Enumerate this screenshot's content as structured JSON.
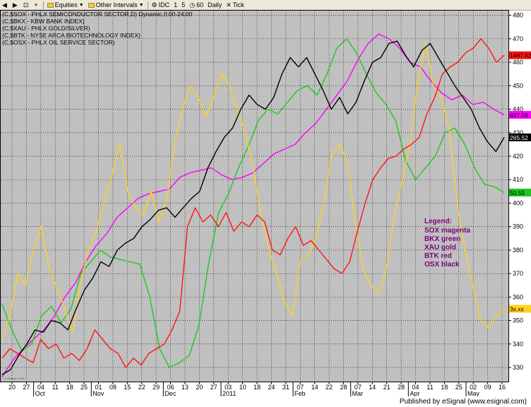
{
  "toolbar": {
    "items": [
      {
        "label": "",
        "icon": "back-icon"
      },
      {
        "label": "",
        "icon": "forward-icon"
      },
      {
        "label": "",
        "icon": "link-icon"
      },
      {
        "label": "",
        "icon": "add-icon"
      },
      {
        "label": "Equities",
        "icon": "folder-icon"
      },
      {
        "label": "Other Intervals",
        "icon": "folder-icon"
      },
      {
        "label": "IDC",
        "icon": "gear-icon"
      },
      {
        "label": "1",
        "icon": ""
      },
      {
        "label": "5",
        "icon": ""
      },
      {
        "label": "60",
        "icon": "circle-icon"
      },
      {
        "label": "Daily",
        "icon": ""
      },
      {
        "label": "Tick",
        "icon": "close-icon"
      }
    ]
  },
  "header_lines": [
    "(C,$SOX - PHLX SEMICONDUCTOR SECTOR,D) Dynamic,0:00-24:00",
    "(C,$BKX - KBW BANK INDEX)",
    "(C,$XAU - PHLX GOLD/SILVER)",
    "(C,$BTK - NYSE ARCA BIOTECHNOLOGY INDEX)",
    "(C,$OSX - PHLX OIL SERVICE SECTOR)"
  ],
  "legend": {
    "title": "Legend:",
    "lines": [
      "SOX magenta",
      "BKX green",
      "XAU gold",
      "BTK red",
      "OSX black"
    ],
    "color": "#7b007b"
  },
  "footer": {
    "text": "Published by eSignal (www.esignal.com)"
  },
  "watermark": "© eSignal, 2010",
  "chart_data": {
    "type": "line",
    "background": "#c0c0c0",
    "grid": true,
    "ylim": [
      324,
      482
    ],
    "yticks": [
      330,
      340,
      350,
      360,
      370,
      380,
      390,
      400,
      410,
      420,
      430,
      440,
      450,
      460,
      470,
      480
    ],
    "x_tick_labels": [
      "20",
      "27",
      "04",
      "11",
      "18",
      "25",
      "01",
      "08",
      "15",
      "22",
      "29",
      "06",
      "13",
      "20",
      "27",
      "03",
      "10",
      "18",
      "24",
      "31",
      "07",
      "14",
      "22",
      "28",
      "07",
      "14",
      "21",
      "28",
      "04",
      "11",
      "18",
      "25",
      "02",
      "09",
      "16"
    ],
    "month_labels": [
      "Oct",
      "Nov",
      "Dec",
      "2011",
      "Feb",
      "Mar",
      "Apr",
      "May"
    ],
    "month_label_after_tick": [
      2,
      6,
      11,
      15,
      20,
      24,
      28,
      32
    ],
    "series": [
      {
        "key": "SOX",
        "color": "#ff00ff",
        "last_label": "437.59",
        "last": 437.59,
        "values": [
          326,
          333,
          338,
          342,
          346,
          352,
          360,
          366,
          375,
          382,
          387,
          394,
          398,
          402,
          404,
          405,
          406,
          411,
          413,
          414,
          415,
          412,
          410,
          411,
          413,
          417,
          421,
          423,
          425,
          430,
          434,
          440,
          446,
          452,
          461,
          468,
          472,
          470,
          466,
          460,
          458,
          452,
          447,
          444,
          446,
          442,
          443,
          440,
          437.59
        ]
      },
      {
        "key": "BKX",
        "color": "#1ec81e",
        "last_label": "50.55",
        "last": 404.5,
        "values": [
          357,
          346,
          337,
          340,
          352,
          356,
          349,
          355,
          370,
          375,
          380,
          377,
          376,
          375,
          374,
          360,
          338,
          330,
          332,
          335,
          348,
          375,
          396,
          404,
          415,
          424,
          435,
          440,
          438,
          443,
          448,
          450,
          446,
          455,
          466,
          470,
          464,
          455,
          447,
          442,
          435,
          418,
          410,
          415,
          420,
          430,
          432,
          425,
          415,
          408,
          407,
          404.5
        ]
      },
      {
        "key": "XAU",
        "color": "#ffd21e",
        "last_label": "3x.xx",
        "last": 355,
        "values": [
          342,
          352,
          370,
          365,
          380,
          390,
          372,
          364,
          355,
          345,
          366,
          380,
          388,
          400,
          412,
          425,
          405,
          398,
          395,
          405,
          392,
          402,
          425,
          440,
          450,
          445,
          437,
          445,
          455,
          450,
          440,
          430,
          415,
          395,
          380,
          370,
          358,
          352,
          375,
          378,
          385,
          400,
          420,
          425,
          418,
          392,
          372,
          365,
          362,
          372,
          395,
          410,
          425,
          452,
          468,
          450,
          445,
          432,
          400,
          380,
          365,
          350,
          347,
          352,
          355
        ]
      },
      {
        "key": "BTK",
        "color": "#ff1414",
        "last_label": "1487.62",
        "last": 463,
        "values": [
          334,
          338,
          336,
          334,
          332,
          342,
          338,
          340,
          334,
          336,
          333,
          338,
          346,
          342,
          338,
          336,
          330,
          334,
          331,
          336,
          338,
          340,
          346,
          354,
          390,
          398,
          392,
          395,
          390,
          396,
          388,
          392,
          390,
          395,
          392,
          380,
          378,
          385,
          390,
          382,
          384,
          380,
          376,
          372,
          370,
          375,
          388,
          400,
          410,
          415,
          419,
          420,
          423,
          425,
          428,
          438,
          445,
          455,
          458,
          460,
          464,
          466,
          470,
          466,
          460,
          463
        ]
      },
      {
        "key": "OSX",
        "color": "#000000",
        "last_label": "265.52",
        "last": 428,
        "values": [
          327,
          329,
          335,
          340,
          346,
          345,
          350,
          349,
          346,
          355,
          363,
          368,
          375,
          373,
          380,
          383,
          385,
          390,
          393,
          397,
          398,
          394,
          398,
          402,
          405,
          415,
          422,
          428,
          432,
          440,
          446,
          442,
          440,
          445,
          455,
          462,
          458,
          462,
          455,
          448,
          440,
          445,
          438,
          443,
          452,
          460,
          462,
          468,
          469,
          463,
          458,
          465,
          468,
          462,
          456,
          450,
          445,
          440,
          432,
          426,
          422,
          428
        ]
      }
    ]
  }
}
